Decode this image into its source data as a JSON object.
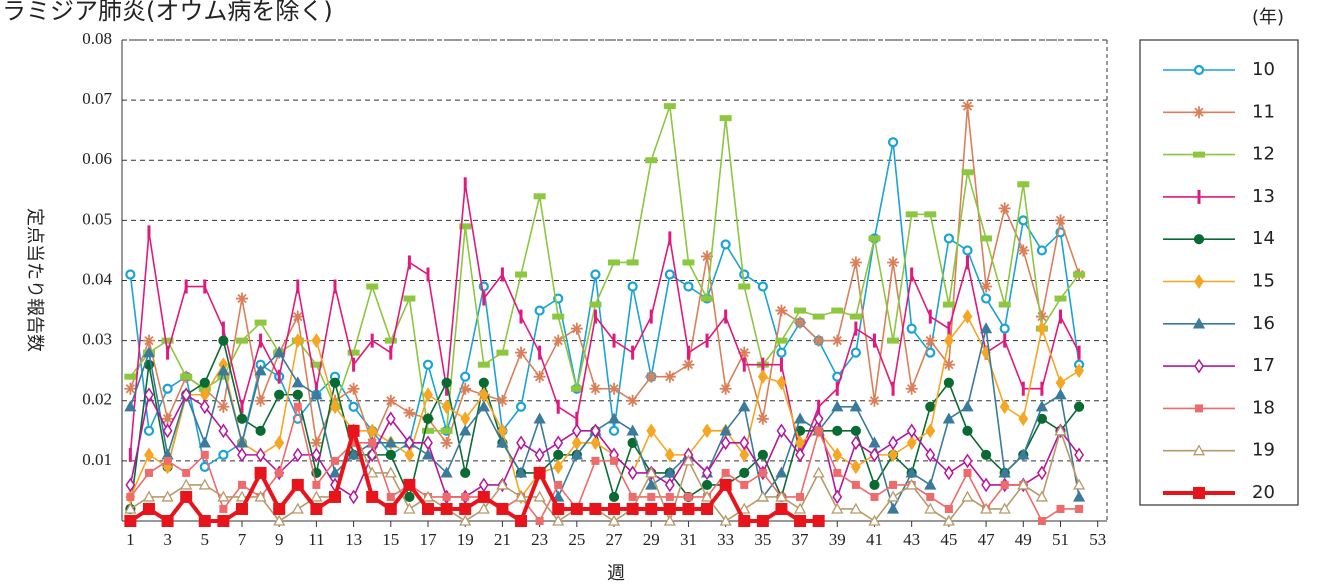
{
  "chart_data": {
    "type": "line",
    "title": "クラミジア肺炎(オウム病を除く)",
    "year_unit": "(年)",
    "y_label": "定点当たり報告数",
    "x_label": "週",
    "x": [
      1,
      2,
      3,
      4,
      5,
      6,
      7,
      8,
      9,
      10,
      11,
      12,
      13,
      14,
      15,
      16,
      17,
      18,
      19,
      20,
      21,
      22,
      23,
      24,
      25,
      26,
      27,
      28,
      29,
      30,
      31,
      32,
      33,
      34,
      35,
      36,
      37,
      38,
      39,
      40,
      41,
      42,
      43,
      44,
      45,
      46,
      47,
      48,
      49,
      50,
      51,
      52
    ],
    "xlim": [
      0.55,
      53.5
    ],
    "xticks": [
      1,
      3,
      5,
      7,
      9,
      11,
      13,
      15,
      17,
      19,
      21,
      23,
      25,
      27,
      29,
      31,
      33,
      35,
      37,
      39,
      41,
      43,
      45,
      47,
      49,
      51,
      53
    ],
    "ylim": [
      0,
      0.08
    ],
    "yticks": [
      0.01,
      0.02,
      0.03,
      0.04,
      0.05,
      0.06,
      0.07,
      0.08
    ],
    "grid": true,
    "legend": "right",
    "series": [
      {
        "name": "10",
        "color": "#1aa3d4",
        "marker": "circle-open",
        "values": [
          0.041,
          0.015,
          0.022,
          0.024,
          0.009,
          0.011,
          0.013,
          0.026,
          0.024,
          0.017,
          0.021,
          0.024,
          0.019,
          0.015,
          0.011,
          0.013,
          0.026,
          0.015,
          0.024,
          0.039,
          0.015,
          0.019,
          0.035,
          0.037,
          0.022,
          0.041,
          0.015,
          0.039,
          0.024,
          0.041,
          0.039,
          0.037,
          0.046,
          0.041,
          0.039,
          0.028,
          0.033,
          0.03,
          0.024,
          0.028,
          0.047,
          0.063,
          0.032,
          0.028,
          0.047,
          0.045,
          0.037,
          0.032,
          0.05,
          0.045,
          0.048,
          0.026
        ]
      },
      {
        "name": "11",
        "color": "#d9805a",
        "marker": "star",
        "values": [
          0.022,
          0.03,
          0.017,
          0.024,
          0.022,
          0.019,
          0.037,
          0.02,
          0.028,
          0.034,
          0.013,
          0.02,
          0.022,
          0.013,
          0.02,
          0.018,
          0.017,
          0.013,
          0.022,
          0.021,
          0.02,
          0.028,
          0.024,
          0.03,
          0.032,
          0.022,
          0.022,
          0.02,
          0.024,
          0.024,
          0.026,
          0.044,
          0.022,
          0.028,
          0.017,
          0.035,
          0.033,
          0.03,
          0.03,
          0.043,
          0.02,
          0.043,
          0.022,
          0.03,
          0.026,
          0.069,
          0.039,
          0.052,
          0.045,
          0.034,
          0.05,
          0.041
        ]
      },
      {
        "name": "12",
        "color": "#8dc63f",
        "marker": "hbar",
        "values": [
          0.024,
          0.028,
          0.03,
          0.024,
          0.022,
          0.024,
          0.03,
          0.033,
          0.028,
          0.03,
          0.026,
          0.019,
          0.028,
          0.039,
          0.03,
          0.037,
          0.015,
          0.015,
          0.049,
          0.026,
          0.028,
          0.041,
          0.054,
          0.034,
          0.022,
          0.036,
          0.043,
          0.043,
          0.06,
          0.069,
          0.043,
          0.037,
          0.067,
          0.039,
          0.026,
          0.03,
          0.035,
          0.034,
          0.035,
          0.034,
          0.047,
          0.03,
          0.051,
          0.051,
          0.036,
          0.058,
          0.047,
          0.036,
          0.056,
          0.032,
          0.037,
          0.041
        ]
      },
      {
        "name": "13",
        "color": "#e0197d",
        "marker": "vbar",
        "values": [
          0.011,
          0.048,
          0.028,
          0.039,
          0.039,
          0.032,
          0.019,
          0.03,
          0.024,
          0.039,
          0.022,
          0.039,
          0.026,
          0.03,
          0.028,
          0.043,
          0.041,
          0.022,
          0.056,
          0.037,
          0.041,
          0.034,
          0.028,
          0.019,
          0.017,
          0.034,
          0.03,
          0.028,
          0.034,
          0.047,
          0.028,
          0.03,
          0.034,
          0.026,
          0.026,
          0.026,
          0.011,
          0.019,
          0.022,
          0.032,
          0.03,
          0.022,
          0.041,
          0.034,
          0.032,
          0.043,
          0.028,
          0.03,
          0.022,
          0.022,
          0.034,
          0.028
        ]
      },
      {
        "name": "14",
        "color": "#0a6b32",
        "marker": "circle",
        "values": [
          0.002,
          0.026,
          0.009,
          0.021,
          0.023,
          0.03,
          0.017,
          0.015,
          0.021,
          0.021,
          0.008,
          0.023,
          0.011,
          0.011,
          0.011,
          0.004,
          0.017,
          0.023,
          0.008,
          0.023,
          0.013,
          0.008,
          0.008,
          0.011,
          0.011,
          0.015,
          0.004,
          0.013,
          0.008,
          0.008,
          0.004,
          0.006,
          0.006,
          0.008,
          0.011,
          0.004,
          0.015,
          0.015,
          0.015,
          0.015,
          0.006,
          0.011,
          0.008,
          0.019,
          0.023,
          0.015,
          0.011,
          0.008,
          0.011,
          0.017,
          0.015,
          0.019
        ]
      },
      {
        "name": "15",
        "color": "#f5a623",
        "marker": "diamond",
        "values": [
          0.004,
          0.011,
          0.009,
          0.021,
          0.021,
          0.026,
          0.013,
          0.011,
          0.013,
          0.03,
          0.03,
          0.019,
          0.015,
          0.015,
          0.013,
          0.011,
          0.021,
          0.019,
          0.017,
          0.021,
          0.015,
          0.004,
          0.008,
          0.009,
          0.013,
          0.013,
          0.011,
          0.008,
          0.015,
          0.011,
          0.011,
          0.015,
          0.015,
          0.011,
          0.024,
          0.023,
          0.013,
          0.015,
          0.011,
          0.009,
          0.011,
          0.011,
          0.013,
          0.015,
          0.03,
          0.034,
          0.028,
          0.019,
          0.017,
          0.032,
          0.023,
          0.025
        ]
      },
      {
        "name": "16",
        "color": "#3b7a9a",
        "marker": "triangle",
        "values": [
          0.019,
          0.028,
          0.011,
          0.021,
          0.013,
          0.025,
          0.013,
          0.025,
          0.028,
          0.023,
          0.021,
          0.008,
          0.011,
          0.013,
          0.013,
          0.013,
          0.011,
          0.008,
          0.015,
          0.019,
          0.013,
          0.008,
          0.017,
          0.004,
          0.011,
          0.015,
          0.017,
          0.015,
          0.006,
          0.008,
          0.011,
          0.008,
          0.015,
          0.019,
          0.004,
          0.008,
          0.017,
          0.015,
          0.019,
          0.019,
          0.013,
          0.002,
          0.008,
          0.006,
          0.017,
          0.019,
          0.032,
          0.008,
          0.011,
          0.019,
          0.021,
          0.004
        ]
      },
      {
        "name": "17",
        "color": "#b5169e",
        "marker": "diamond-open",
        "values": [
          0.006,
          0.021,
          0.015,
          0.021,
          0.019,
          0.015,
          0.011,
          0.011,
          0.008,
          0.011,
          0.011,
          0.006,
          0.004,
          0.011,
          0.017,
          0.013,
          0.013,
          0.004,
          0.004,
          0.006,
          0.006,
          0.013,
          0.011,
          0.013,
          0.015,
          0.015,
          0.011,
          0.008,
          0.008,
          0.006,
          0.011,
          0.008,
          0.013,
          0.013,
          0.008,
          0.015,
          0.011,
          0.017,
          0.004,
          0.013,
          0.011,
          0.013,
          0.015,
          0.011,
          0.008,
          0.01,
          0.006,
          0.006,
          0.006,
          0.008,
          0.015,
          0.011
        ]
      },
      {
        "name": "18",
        "color": "#ef6a6a",
        "marker": "square",
        "values": [
          0.004,
          0.008,
          0.01,
          0.008,
          0.011,
          0.002,
          0.006,
          0.004,
          0.008,
          0.019,
          0.006,
          0.01,
          0.013,
          0.013,
          0.004,
          0.006,
          0.004,
          0.004,
          0.004,
          0.004,
          0.002,
          0.004,
          0,
          0.006,
          0.002,
          0.01,
          0.01,
          0.004,
          0.004,
          0.004,
          0.004,
          0.004,
          0.008,
          0.006,
          0.008,
          0.004,
          0.004,
          0.015,
          0.008,
          0.006,
          0.004,
          0.006,
          0.006,
          0.004,
          0.002,
          0.008,
          0.002,
          0.006,
          0.006,
          0,
          0.002,
          0.002
        ]
      },
      {
        "name": "19",
        "color": "#b89a6a",
        "marker": "triangle-open",
        "values": [
          0.002,
          0.004,
          0.004,
          0.006,
          0.006,
          0.004,
          0.004,
          0.004,
          0,
          0.002,
          0.004,
          0.004,
          0.015,
          0.008,
          0.008,
          0.002,
          0.004,
          0.002,
          0,
          0.002,
          0.006,
          0.004,
          0.004,
          0,
          0.002,
          0.002,
          0,
          0.002,
          0.008,
          0,
          0.01,
          0.004,
          0,
          0.002,
          0.004,
          0.004,
          0.002,
          0.008,
          0.002,
          0.002,
          0,
          0.004,
          0.006,
          0.002,
          0,
          0.004,
          0.002,
          0.002,
          0.006,
          0.004,
          0.015,
          0.006
        ]
      },
      {
        "name": "20",
        "color": "#e8141b",
        "marker": "square-big",
        "values": [
          0,
          0.002,
          0,
          0.004,
          0,
          0,
          0.002,
          0.008,
          0.002,
          0.006,
          0.002,
          0.004,
          0.015,
          0.004,
          0.002,
          0.006,
          0.002,
          0.002,
          0.002,
          0.004,
          0.002,
          0,
          0.008,
          0.002,
          0.002,
          0.002,
          0.002,
          0.002,
          0.002,
          0.002,
          0.002,
          0.002,
          0.006,
          0,
          0,
          0.002,
          0,
          0,
          null,
          null,
          null,
          null,
          null,
          null,
          null,
          null,
          null,
          null,
          null,
          null,
          null,
          null
        ]
      }
    ]
  }
}
